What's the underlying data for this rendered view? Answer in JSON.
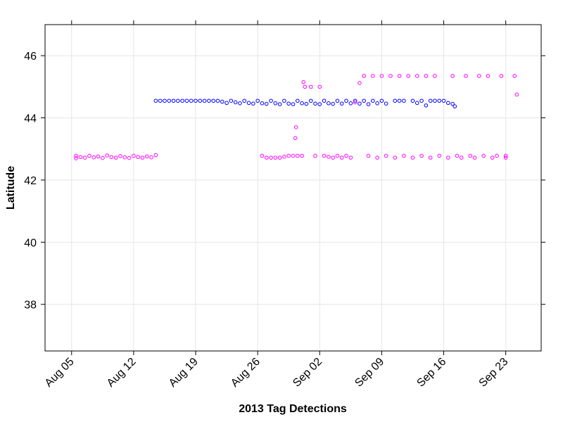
{
  "chart_data": {
    "type": "scatter",
    "title": "",
    "xlabel": "2013 Tag Detections",
    "ylabel": "Latitude",
    "xlim": [
      "2013-08-02",
      "2013-09-27"
    ],
    "ylim": [
      36.5,
      47.0
    ],
    "x_ticks": [
      {
        "date": "2013-08-05",
        "label": "Aug 05"
      },
      {
        "date": "2013-08-12",
        "label": "Aug 12"
      },
      {
        "date": "2013-08-19",
        "label": "Aug 19"
      },
      {
        "date": "2013-08-26",
        "label": "Aug 26"
      },
      {
        "date": "2013-09-02",
        "label": "Sep 02"
      },
      {
        "date": "2013-09-09",
        "label": "Sep 09"
      },
      {
        "date": "2013-09-16",
        "label": "Sep 16"
      },
      {
        "date": "2013-09-23",
        "label": "Sep 23"
      }
    ],
    "y_ticks": [
      {
        "value": 38,
        "label": "38"
      },
      {
        "value": 40,
        "label": "40"
      },
      {
        "value": 42,
        "label": "42"
      },
      {
        "value": 44,
        "label": "44"
      },
      {
        "value": 46,
        "label": "46"
      }
    ],
    "grid": true,
    "legend": "none",
    "series": [
      {
        "color": "#0000ff",
        "marker": "open-circle",
        "points": [
          [
            "2013-08-14 12:00",
            44.55
          ],
          [
            "2013-08-15 00:00",
            44.55
          ],
          [
            "2013-08-15 12:00",
            44.55
          ],
          [
            "2013-08-16 00:00",
            44.55
          ],
          [
            "2013-08-16 12:00",
            44.55
          ],
          [
            "2013-08-17 00:00",
            44.55
          ],
          [
            "2013-08-17 12:00",
            44.55
          ],
          [
            "2013-08-18 00:00",
            44.55
          ],
          [
            "2013-08-18 12:00",
            44.55
          ],
          [
            "2013-08-19 00:00",
            44.55
          ],
          [
            "2013-08-19 12:00",
            44.55
          ],
          [
            "2013-08-20 00:00",
            44.55
          ],
          [
            "2013-08-20 12:00",
            44.55
          ],
          [
            "2013-08-21 00:00",
            44.55
          ],
          [
            "2013-08-21 12:00",
            44.55
          ],
          [
            "2013-08-22 00:00",
            44.52
          ],
          [
            "2013-08-22 12:00",
            44.48
          ],
          [
            "2013-08-23 00:00",
            44.55
          ],
          [
            "2013-08-23 12:00",
            44.5
          ],
          [
            "2013-08-24 00:00",
            44.47
          ],
          [
            "2013-08-24 12:00",
            44.55
          ],
          [
            "2013-08-25 00:00",
            44.48
          ],
          [
            "2013-08-25 12:00",
            44.46
          ],
          [
            "2013-08-26 00:00",
            44.55
          ],
          [
            "2013-08-26 12:00",
            44.47
          ],
          [
            "2013-08-27 00:00",
            44.45
          ],
          [
            "2013-08-27 12:00",
            44.55
          ],
          [
            "2013-08-28 00:00",
            44.47
          ],
          [
            "2013-08-28 12:00",
            44.44
          ],
          [
            "2013-08-29 00:00",
            44.55
          ],
          [
            "2013-08-29 12:00",
            44.46
          ],
          [
            "2013-08-30 00:00",
            44.44
          ],
          [
            "2013-08-30 12:00",
            44.55
          ],
          [
            "2013-08-31 00:00",
            44.47
          ],
          [
            "2013-08-31 12:00",
            44.45
          ],
          [
            "2013-09-01 00:00",
            44.55
          ],
          [
            "2013-09-01 12:00",
            44.46
          ],
          [
            "2013-09-02 00:00",
            44.44
          ],
          [
            "2013-09-02 12:00",
            44.55
          ],
          [
            "2013-09-03 00:00",
            44.47
          ],
          [
            "2013-09-03 12:00",
            44.45
          ],
          [
            "2013-09-04 00:00",
            44.55
          ],
          [
            "2013-09-04 12:00",
            44.46
          ],
          [
            "2013-09-05 00:00",
            44.55
          ],
          [
            "2013-09-05 12:00",
            44.47
          ],
          [
            "2013-09-06 00:00",
            44.55
          ],
          [
            "2013-09-06 12:00",
            44.46
          ],
          [
            "2013-09-07 00:00",
            44.55
          ],
          [
            "2013-09-07 12:00",
            44.44
          ],
          [
            "2013-09-08 00:00",
            44.55
          ],
          [
            "2013-09-08 12:00",
            44.47
          ],
          [
            "2013-09-09 00:00",
            44.55
          ],
          [
            "2013-09-09 12:00",
            44.46
          ],
          [
            "2013-09-10 12:00",
            44.55
          ],
          [
            "2013-09-11 00:00",
            44.55
          ],
          [
            "2013-09-11 12:00",
            44.55
          ],
          [
            "2013-09-12 12:00",
            44.55
          ],
          [
            "2013-09-13 00:00",
            44.48
          ],
          [
            "2013-09-13 12:00",
            44.55
          ],
          [
            "2013-09-14 00:00",
            44.4
          ],
          [
            "2013-09-14 12:00",
            44.55
          ],
          [
            "2013-09-15 00:00",
            44.55
          ],
          [
            "2013-09-15 12:00",
            44.55
          ],
          [
            "2013-09-16 00:00",
            44.55
          ],
          [
            "2013-09-16 12:00",
            44.48
          ],
          [
            "2013-09-17 00:00",
            44.45
          ],
          [
            "2013-09-17 06:00",
            44.37
          ]
        ]
      },
      {
        "color": "#ff00ff",
        "marker": "open-circle",
        "points": [
          [
            "2013-08-05 12:00",
            42.78
          ],
          [
            "2013-08-05 12:00",
            42.7
          ],
          [
            "2013-08-06 00:00",
            42.74
          ],
          [
            "2013-08-06 12:00",
            42.72
          ],
          [
            "2013-08-07 00:00",
            42.78
          ],
          [
            "2013-08-07 12:00",
            42.73
          ],
          [
            "2013-08-08 00:00",
            42.76
          ],
          [
            "2013-08-08 12:00",
            42.71
          ],
          [
            "2013-08-09 00:00",
            42.79
          ],
          [
            "2013-08-09 12:00",
            42.74
          ],
          [
            "2013-08-10 00:00",
            42.72
          ],
          [
            "2013-08-10 12:00",
            42.77
          ],
          [
            "2013-08-11 00:00",
            42.73
          ],
          [
            "2013-08-11 12:00",
            42.71
          ],
          [
            "2013-08-12 00:00",
            42.78
          ],
          [
            "2013-08-12 12:00",
            42.74
          ],
          [
            "2013-08-13 00:00",
            42.72
          ],
          [
            "2013-08-13 12:00",
            42.76
          ],
          [
            "2013-08-14 00:00",
            42.73
          ],
          [
            "2013-08-14 12:00",
            42.8
          ],
          [
            "2013-08-26 12:00",
            42.78
          ],
          [
            "2013-08-27 00:00",
            42.72
          ],
          [
            "2013-08-27 12:00",
            42.72
          ],
          [
            "2013-08-28 00:00",
            42.72
          ],
          [
            "2013-08-28 12:00",
            42.72
          ],
          [
            "2013-08-29 00:00",
            42.75
          ],
          [
            "2013-08-29 12:00",
            42.78
          ],
          [
            "2013-08-30 00:00",
            42.78
          ],
          [
            "2013-08-30 06:00",
            43.35
          ],
          [
            "2013-08-30 08:00",
            43.7
          ],
          [
            "2013-08-30 12:00",
            42.78
          ],
          [
            "2013-08-31 00:00",
            42.78
          ],
          [
            "2013-08-31 04:00",
            45.15
          ],
          [
            "2013-08-31 08:00",
            45.0
          ],
          [
            "2013-09-01 00:00",
            45.0
          ],
          [
            "2013-09-01 12:00",
            42.78
          ],
          [
            "2013-09-02 00:00",
            45.0
          ],
          [
            "2013-09-02 12:00",
            42.78
          ],
          [
            "2013-09-03 00:00",
            42.75
          ],
          [
            "2013-09-03 12:00",
            42.72
          ],
          [
            "2013-09-04 00:00",
            42.78
          ],
          [
            "2013-09-04 12:00",
            42.72
          ],
          [
            "2013-09-05 00:00",
            42.78
          ],
          [
            "2013-09-05 12:00",
            42.72
          ],
          [
            "2013-09-06 00:00",
            44.5
          ],
          [
            "2013-09-06 12:00",
            45.12
          ],
          [
            "2013-09-07 00:00",
            45.35
          ],
          [
            "2013-09-07 12:00",
            42.78
          ],
          [
            "2013-09-08 00:00",
            45.35
          ],
          [
            "2013-09-08 12:00",
            42.72
          ],
          [
            "2013-09-09 00:00",
            45.35
          ],
          [
            "2013-09-09 12:00",
            42.78
          ],
          [
            "2013-09-10 00:00",
            45.35
          ],
          [
            "2013-09-10 12:00",
            42.72
          ],
          [
            "2013-09-11 00:00",
            45.35
          ],
          [
            "2013-09-11 12:00",
            42.78
          ],
          [
            "2013-09-12 00:00",
            45.35
          ],
          [
            "2013-09-12 12:00",
            42.72
          ],
          [
            "2013-09-13 00:00",
            45.35
          ],
          [
            "2013-09-13 12:00",
            42.78
          ],
          [
            "2013-09-14 00:00",
            45.35
          ],
          [
            "2013-09-14 12:00",
            42.72
          ],
          [
            "2013-09-15 00:00",
            45.35
          ],
          [
            "2013-09-15 12:00",
            42.78
          ],
          [
            "2013-09-16 12:00",
            42.72
          ],
          [
            "2013-09-17 00:00",
            45.35
          ],
          [
            "2013-09-17 12:00",
            42.78
          ],
          [
            "2013-09-18 00:00",
            42.72
          ],
          [
            "2013-09-18 12:00",
            45.35
          ],
          [
            "2013-09-19 00:00",
            42.78
          ],
          [
            "2013-09-19 12:00",
            42.72
          ],
          [
            "2013-09-20 00:00",
            45.35
          ],
          [
            "2013-09-20 12:00",
            42.78
          ],
          [
            "2013-09-21 00:00",
            45.35
          ],
          [
            "2013-09-21 12:00",
            42.72
          ],
          [
            "2013-09-22 00:00",
            42.78
          ],
          [
            "2013-09-22 12:00",
            45.35
          ],
          [
            "2013-09-23 00:00",
            42.72
          ],
          [
            "2013-09-23 00:00",
            42.78
          ],
          [
            "2013-09-24 00:00",
            45.35
          ],
          [
            "2013-09-24 06:00",
            44.75
          ]
        ]
      }
    ]
  }
}
